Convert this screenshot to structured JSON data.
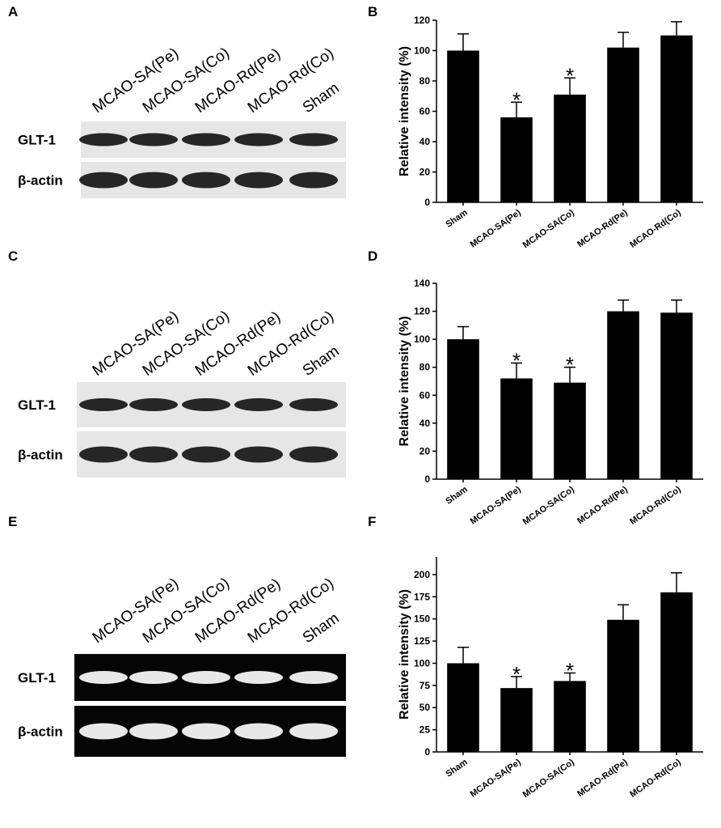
{
  "blots": [
    {
      "panel": "A",
      "lanes": [
        "MCAO-SA(Pe)",
        "MCAO-SA(Co)",
        "MCAO-Rd(Pe)",
        "MCAO-Rd(Co)",
        "Sham"
      ],
      "rows": [
        "GLT-1",
        "β-actin"
      ]
    },
    {
      "panel": "C",
      "lanes": [
        "MCAO-SA(Pe)",
        "MCAO-SA(Co)",
        "MCAO-Rd(Pe)",
        "MCAO-Rd(Co)",
        "Sham"
      ],
      "rows": [
        "GLT-1",
        "β-actin"
      ]
    },
    {
      "panel": "E",
      "lanes": [
        "MCAO-SA(Pe)",
        "MCAO-SA(Co)",
        "MCAO-Rd(Pe)",
        "MCAO-Rd(Co)",
        "Sham"
      ],
      "rows": [
        "GLT-1",
        "β-actin"
      ]
    }
  ],
  "chart_data": [
    {
      "type": "bar",
      "panel": "B",
      "ylabel": "Relative intensity (%)",
      "categories": [
        "Sham",
        "MCAO-SA(Pe)",
        "MCAO-SA(Co)",
        "MCAO-Rd(Pe)",
        "MCAO-Rd(Co)"
      ],
      "values": [
        100,
        56,
        71,
        102,
        110
      ],
      "error": [
        11,
        10,
        11,
        10,
        9
      ],
      "markers": [
        null,
        "*",
        "*",
        null,
        null
      ],
      "color": "#000000",
      "ylim": [
        0,
        120
      ],
      "yticks": [
        0,
        20,
        40,
        60,
        80,
        100,
        120
      ]
    },
    {
      "type": "bar",
      "panel": "D",
      "ylabel": "Relative intensity (%)",
      "categories": [
        "Sham",
        "MCAO-SA(Pe)",
        "MCAO-SA(Co)",
        "MCAO-Rd(Pe)",
        "MCAO-Rd(Co)"
      ],
      "values": [
        100,
        72,
        69,
        120,
        119
      ],
      "error": [
        9,
        11,
        11,
        8,
        9
      ],
      "markers": [
        null,
        "*",
        "*",
        null,
        null
      ],
      "color": "#000000",
      "ylim": [
        0,
        140
      ],
      "yticks": [
        0,
        20,
        40,
        60,
        80,
        100,
        120,
        140
      ]
    },
    {
      "type": "bar",
      "panel": "F",
      "ylabel": "Relative intensity (%)",
      "categories": [
        "Sham",
        "MCAO-SA(Pe)",
        "MCAO-SA(Co)",
        "MCAO-Rd(Pe)",
        "MCAO-Rd(Co)"
      ],
      "values": [
        100,
        72,
        80,
        149,
        180
      ],
      "error": [
        18,
        13,
        9,
        17,
        22
      ],
      "markers": [
        null,
        "*",
        "*",
        null,
        null
      ],
      "color": "#000000",
      "ylim": [
        0,
        220
      ],
      "yticks": [
        0,
        25,
        50,
        75,
        100,
        125,
        150,
        175,
        200
      ]
    }
  ]
}
